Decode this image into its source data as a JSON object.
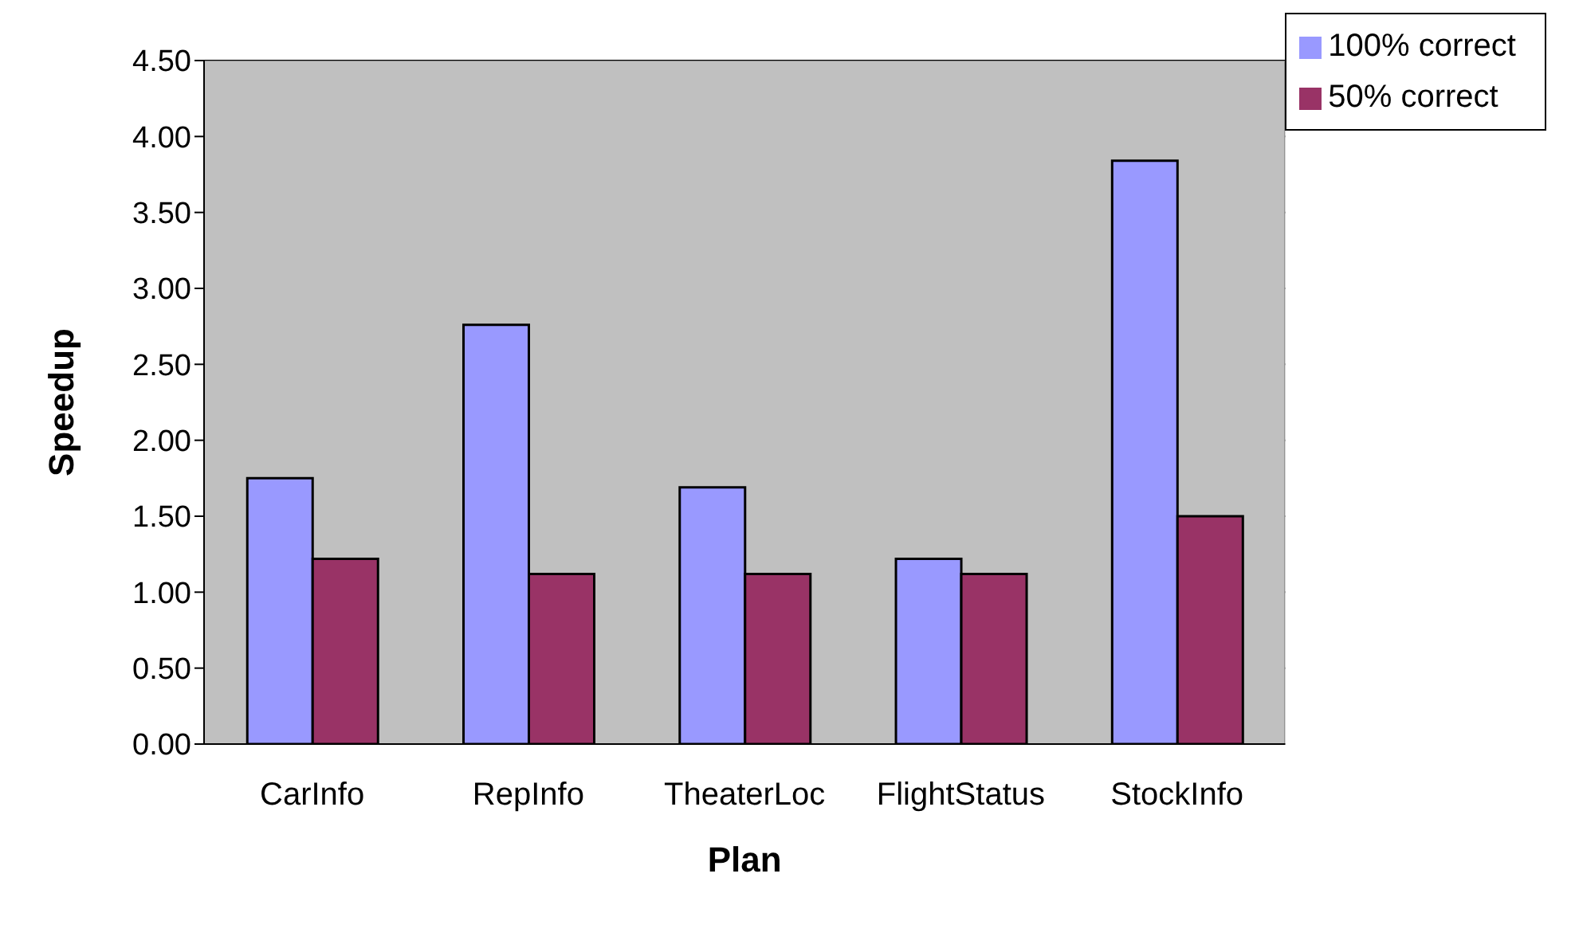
{
  "chart_data": {
    "type": "bar",
    "xlabel": "Plan",
    "ylabel": "Speedup",
    "categories": [
      "CarInfo",
      "RepInfo",
      "TheaterLoc",
      "FlightStatus",
      "StockInfo"
    ],
    "series": [
      {
        "name": "100% correct",
        "color": "#9999ff",
        "values": [
          1.75,
          2.76,
          1.69,
          1.22,
          3.84
        ]
      },
      {
        "name": "50% correct",
        "color": "#993366",
        "values": [
          1.22,
          1.12,
          1.12,
          1.12,
          1.5
        ]
      }
    ],
    "ylim": [
      0,
      4.5
    ],
    "yticks": [
      {
        "value": 0,
        "label": "0.00"
      },
      {
        "value": 0.5,
        "label": "0.50"
      },
      {
        "value": 1,
        "label": "1.00"
      },
      {
        "value": 1.5,
        "label": "1.50"
      },
      {
        "value": 2,
        "label": "2.00"
      },
      {
        "value": 2.5,
        "label": "2.50"
      },
      {
        "value": 3,
        "label": "3.00"
      },
      {
        "value": 3.5,
        "label": "3.50"
      },
      {
        "value": 4,
        "label": "4.00"
      },
      {
        "value": 4.5,
        "label": "4.50"
      }
    ],
    "grid": "y",
    "legend": "top right"
  }
}
